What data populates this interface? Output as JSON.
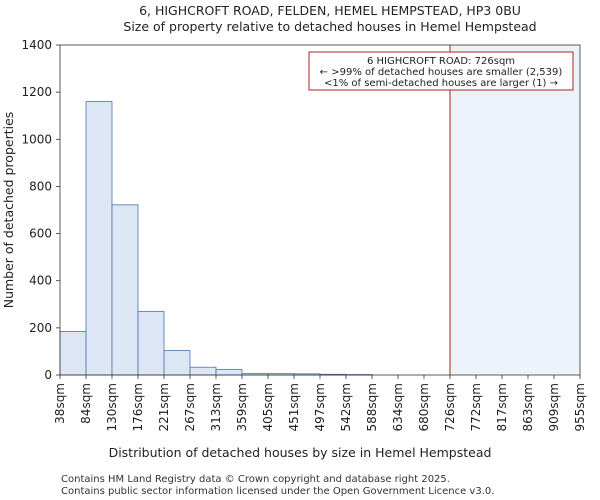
{
  "chart_data": {
    "type": "bar",
    "title": "6, HIGHCROFT ROAD, FELDEN, HEMEL HEMPSTEAD, HP3 0BU",
    "subtitle": "Size of property relative to detached houses in Hemel Hempstead",
    "xlabel": "Distribution of detached houses by size in Hemel Hempstead",
    "ylabel": "Number of detached properties",
    "ylim": [
      0,
      1400
    ],
    "yticks": [
      0,
      200,
      400,
      600,
      800,
      1000,
      1200,
      1400
    ],
    "bin_edges": [
      "38sqm",
      "84sqm",
      "130sqm",
      "176sqm",
      "221sqm",
      "267sqm",
      "313sqm",
      "359sqm",
      "405sqm",
      "451sqm",
      "497sqm",
      "542sqm",
      "588sqm",
      "634sqm",
      "680sqm",
      "726sqm",
      "772sqm",
      "817sqm",
      "863sqm",
      "909sqm",
      "955sqm"
    ],
    "values": [
      185,
      1160,
      722,
      270,
      104,
      33,
      24,
      7,
      6,
      5,
      3,
      2,
      0,
      0,
      0,
      0,
      0,
      0,
      0,
      0
    ],
    "bar_color": "#dce6f4",
    "bar_edge_color": "#4e74b1",
    "highlight": {
      "bin_index": 15,
      "line_color": "#b22222",
      "shade_color": "#eef2fb"
    },
    "annotation": {
      "lines": [
        "6 HIGHCROFT ROAD: 726sqm",
        "← >99% of detached houses are smaller (2,539)",
        "<1% of semi-detached houses are larger (1) →"
      ],
      "border_color": "#b22222"
    },
    "grid": false
  },
  "footer": {
    "line1": "Contains HM Land Registry data © Crown copyright and database right 2025.",
    "line2": "Contains public sector information licensed under the Open Government Licence v3.0."
  }
}
